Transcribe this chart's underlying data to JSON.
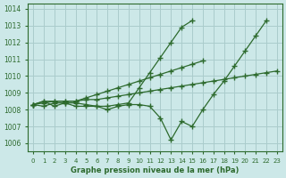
{
  "xlabel": "Graphe pression niveau de la mer (hPa)",
  "ylabel": "",
  "background_color": "#cce8e8",
  "grid_color": "#aacccc",
  "line_color": "#2d6a2d",
  "xlim": [
    -0.5,
    23.5
  ],
  "ylim": [
    1005.5,
    1014.3
  ],
  "yticks": [
    1006,
    1007,
    1008,
    1009,
    1010,
    1011,
    1012,
    1013,
    1014
  ],
  "xticks": [
    0,
    1,
    2,
    3,
    4,
    5,
    6,
    7,
    8,
    9,
    10,
    11,
    12,
    13,
    14,
    15,
    16,
    17,
    18,
    19,
    20,
    21,
    22,
    23
  ],
  "series": [
    [
      1008.3,
      1008.5,
      1008.2,
      1008.4,
      1008.4,
      1008.3,
      1008.2,
      1008.0,
      1008.2,
      1008.3,
      1008.3,
      1008.2,
      1007.5,
      1006.2,
      1007.3,
      1007.0,
      1008.0,
      1008.9,
      1009.7,
      1010.6,
      1011.5,
      1012.4,
      1013.3
    ],
    [
      1008.3,
      1008.2,
      1008.4,
      1008.4,
      1008.2,
      1008.2,
      1008.2,
      1008.2,
      1008.3,
      1008.4,
      1009.3,
      1010.2,
      1011.1,
      1012.0,
      1012.9,
      1013.3
    ],
    [
      1008.3,
      1008.5,
      1008.5,
      1008.5,
      1008.5,
      1008.7,
      1008.9,
      1009.1,
      1009.3,
      1009.5,
      1009.7,
      1009.9,
      1010.1,
      1010.3,
      1010.5,
      1010.7,
      1010.9
    ],
    [
      1008.3,
      1008.4,
      1008.5,
      1008.5,
      1008.5,
      1008.6,
      1008.6,
      1008.7,
      1008.8,
      1008.9,
      1009.0,
      1009.1,
      1009.2,
      1009.3,
      1009.4,
      1009.5,
      1009.6,
      1009.7,
      1009.8,
      1009.9,
      1010.0,
      1010.1,
      1010.2,
      1010.3
    ]
  ],
  "series_x": [
    [
      0,
      1,
      2,
      3,
      4,
      5,
      6,
      7,
      8,
      9,
      10,
      11,
      12,
      13,
      14,
      15,
      16,
      17,
      18,
      19,
      20,
      21,
      22
    ],
    [
      0,
      1,
      2,
      3,
      4,
      5,
      6,
      7,
      8,
      9,
      10,
      11,
      12,
      13,
      14,
      15
    ],
    [
      0,
      1,
      2,
      3,
      4,
      5,
      6,
      7,
      8,
      9,
      10,
      11,
      12,
      13,
      14,
      15,
      16
    ],
    [
      0,
      1,
      2,
      3,
      4,
      5,
      6,
      7,
      8,
      9,
      10,
      11,
      12,
      13,
      14,
      15,
      16,
      17,
      18,
      19,
      20,
      21,
      22,
      23
    ]
  ]
}
